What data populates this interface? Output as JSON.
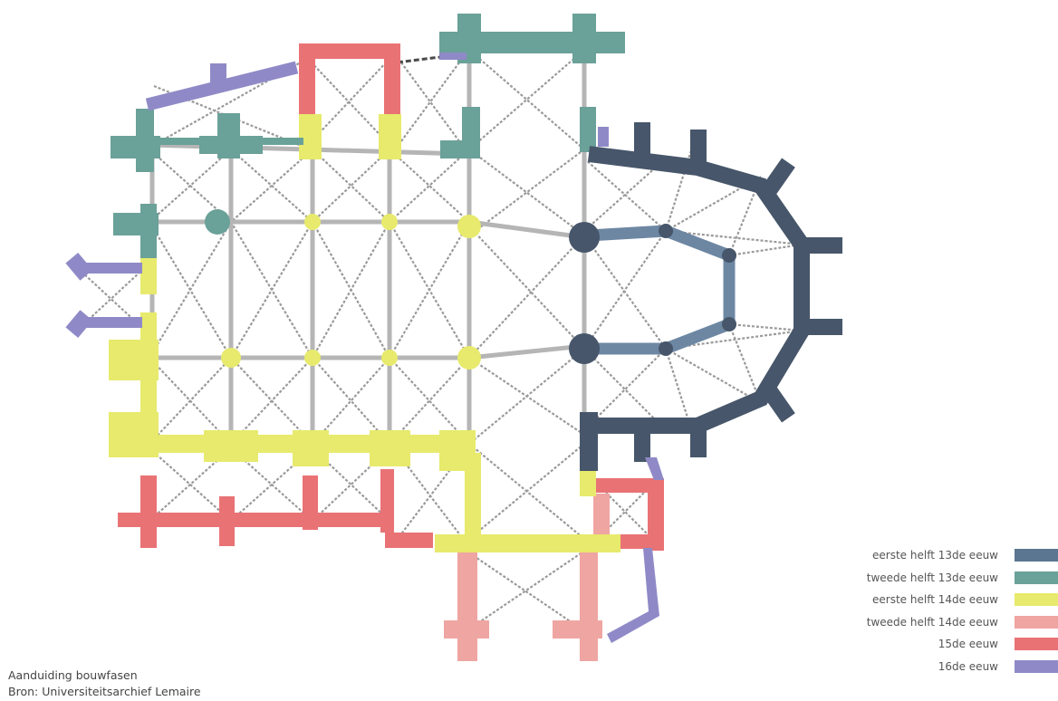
{
  "legend": {
    "items": [
      {
        "label": "eerste helft 13de eeuw",
        "color": "#5b7690"
      },
      {
        "label": "tweede helft 13de eeuw",
        "color": "#6aa199"
      },
      {
        "label": "eerste helft 14de eeuw",
        "color": "#e7ea6c"
      },
      {
        "label": "tweede helft 14de eeuw",
        "color": "#efa5a2"
      },
      {
        "label": "15de eeuw",
        "color": "#e97275"
      },
      {
        "label": "16de eeuw",
        "color": "#8f8ac7"
      }
    ]
  },
  "caption": {
    "line1": "Aanduiding bouwfasen",
    "line2": "Bron: Universiteitsarchief Lemaire"
  }
}
